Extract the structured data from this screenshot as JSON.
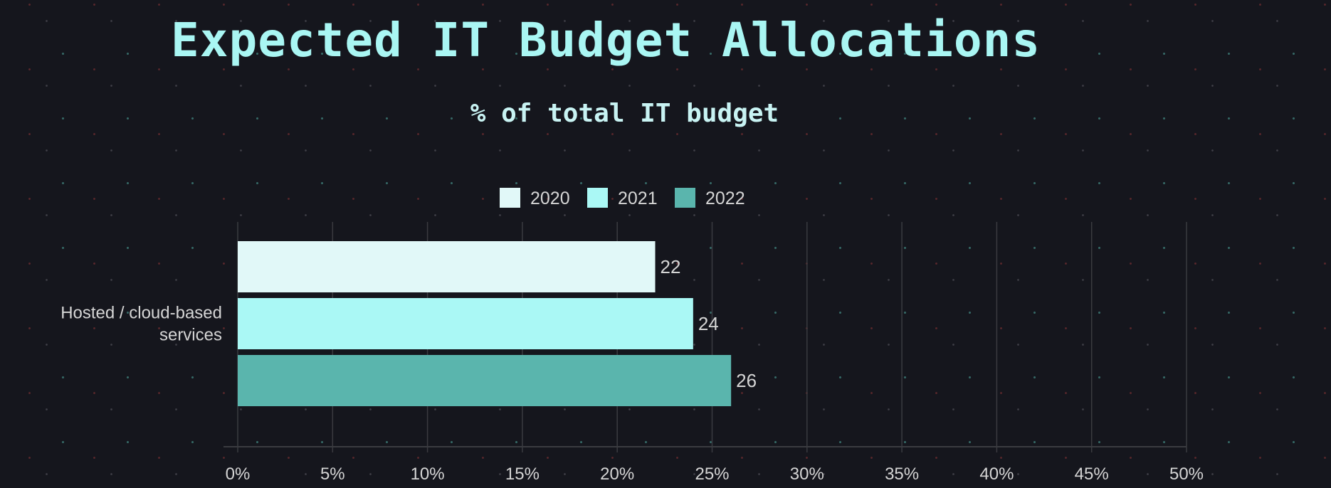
{
  "chart_data": {
    "type": "bar",
    "orientation": "horizontal",
    "title": "Expected IT Budget Allocations",
    "subtitle": "% of total IT budget",
    "categories": [
      "Hosted / cloud-based services"
    ],
    "series": [
      {
        "name": "2020",
        "values": [
          22
        ],
        "color": "#e1f8f8"
      },
      {
        "name": "2021",
        "values": [
          24
        ],
        "color": "#aaf8f5"
      },
      {
        "name": "2022",
        "values": [
          26
        ],
        "color": "#5ab5ad"
      }
    ],
    "xlim": [
      0,
      50
    ],
    "x_ticks": [
      "0%",
      "5%",
      "10%",
      "15%",
      "20%",
      "25%",
      "30%",
      "35%",
      "40%",
      "45%",
      "50%"
    ],
    "category_label_lines": [
      "Hosted / cloud-based",
      "services"
    ],
    "data_labels": true,
    "grid": true,
    "legend": "top-center",
    "colors": {
      "background": "#15161d",
      "title": "#a9f6f3",
      "text": "#d5d5d5",
      "grid": "#3a3b40"
    }
  }
}
